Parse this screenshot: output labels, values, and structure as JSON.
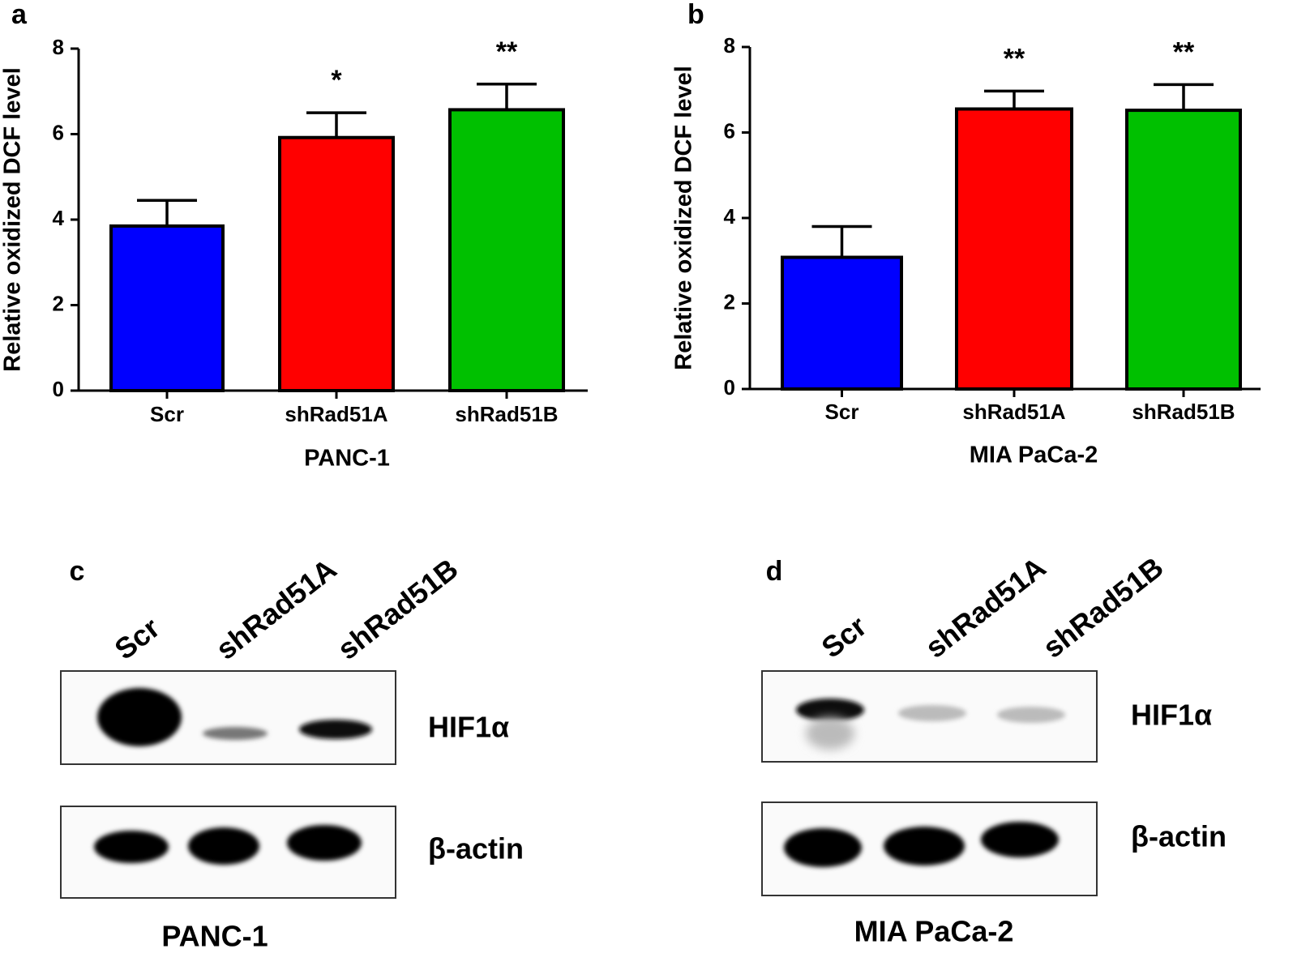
{
  "chart_data": [
    {
      "type": "bar",
      "panel": "a",
      "y_label": "Relative oxidized DCF level",
      "x_label": "PANC-1",
      "categories": [
        "Scr",
        "shRad51A",
        "shRad51B"
      ],
      "values": [
        3.85,
        5.92,
        6.57
      ],
      "errors": [
        0.6,
        0.58,
        0.6
      ],
      "annotations": [
        null,
        "*",
        "**"
      ],
      "colors": [
        "#0000ff",
        "#ff0000",
        "#00c000"
      ],
      "ylim": [
        0,
        8
      ],
      "yticks": [
        0,
        2,
        4,
        6,
        8
      ]
    },
    {
      "type": "bar",
      "panel": "b",
      "y_label": "Relative oxidized DCF level",
      "x_label": "MIA PaCa-2",
      "categories": [
        "Scr",
        "shRad51A",
        "shRad51B"
      ],
      "values": [
        3.08,
        6.55,
        6.52
      ],
      "errors": [
        0.72,
        0.42,
        0.6
      ],
      "annotations": [
        null,
        "**",
        "**"
      ],
      "colors": [
        "#0000ff",
        "#ff0000",
        "#00c000"
      ],
      "ylim": [
        0,
        8
      ],
      "yticks": [
        0,
        2,
        4,
        6,
        8
      ]
    }
  ],
  "blots": [
    {
      "panel": "c",
      "lanes": [
        "Scr",
        "shRad51A",
        "shRad51B"
      ],
      "bands": [
        "HIF1α",
        "β-actin"
      ],
      "cell_line": "PANC-1"
    },
    {
      "panel": "d",
      "lanes": [
        "Scr",
        "shRad51A",
        "shRad51B"
      ],
      "bands": [
        "HIF1α",
        "β-actin"
      ],
      "cell_line": "MIA PaCa-2"
    }
  ]
}
